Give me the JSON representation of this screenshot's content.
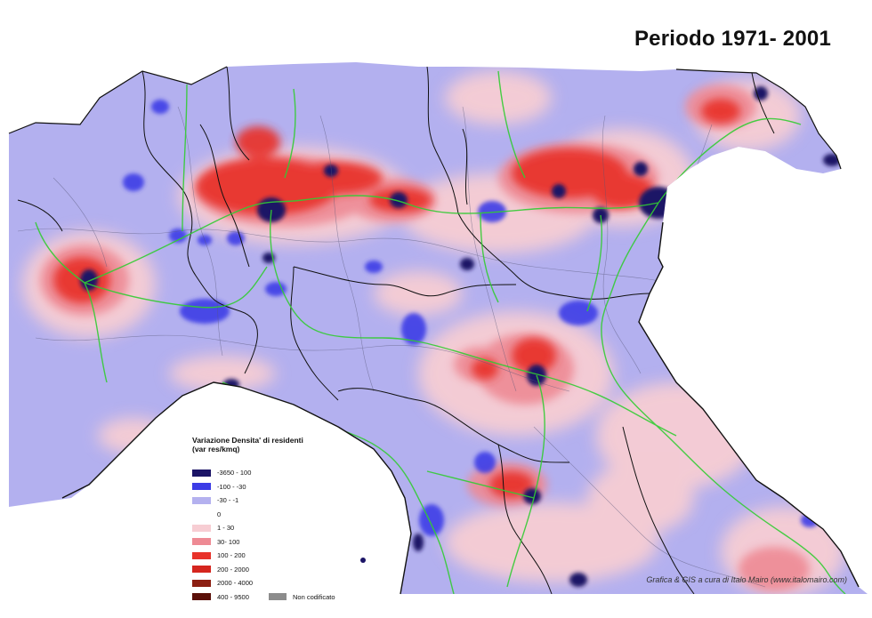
{
  "title": "Periodo 1971- 2001",
  "legend": {
    "title_line1": "Variazione Densita' di residenti",
    "title_line2": "(var res/kmq)",
    "items": [
      {
        "label": "-3650 - 100",
        "color": "#1b1466"
      },
      {
        "label": "-100 - -30",
        "color": "#3c3ce6"
      },
      {
        "label": "-30 - -1",
        "color": "#b4b1ef"
      },
      {
        "label": "0",
        "color": "#ffffff"
      },
      {
        "label": "1 - 30",
        "color": "#f7cdd3"
      },
      {
        "label": "30- 100",
        "color": "#ee8a94"
      },
      {
        "label": "100 - 200",
        "color": "#e8322a"
      },
      {
        "label": "200 - 2000",
        "color": "#d5251e"
      },
      {
        "label": "2000 - 4000",
        "color": "#8c1f12"
      },
      {
        "label": "400 - 9500",
        "color": "#5a0f08"
      }
    ],
    "not_coded": {
      "label": "Non codificato",
      "color": "#8c8c8c"
    }
  },
  "credit": "Grafica & GIS a cura di Italo Mairo (www.italomairo.com)",
  "map_colors": {
    "base": "#b3b0ef",
    "sea": "#ffffff",
    "growth_light": "#f7cdd3",
    "growth_medium": "#ee8a94",
    "growth_strong": "#e8322a",
    "decline_medium": "#3c3ce6",
    "decline_strong": "#1b1466",
    "highways": "#33cc33",
    "borders": "#111111",
    "roads": "#555577"
  }
}
